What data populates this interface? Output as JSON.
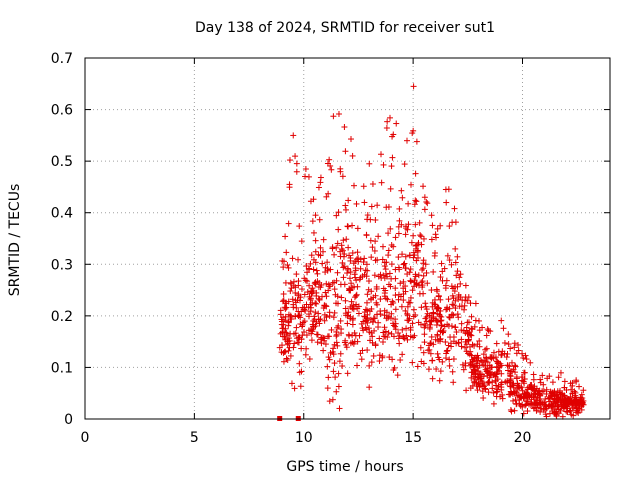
{
  "chart_data": {
    "type": "scatter",
    "title": "Day 138 of 2024, SRMTID for receiver sut1",
    "xlabel": "GPS time / hours",
    "ylabel": "SRMTID / TECUs",
    "xlim": [
      0,
      24
    ],
    "ylim": [
      0,
      0.7
    ],
    "x_ticks": [
      0,
      5,
      10,
      15,
      20
    ],
    "x_tick_labels": [
      "0",
      "5",
      "10",
      "15",
      "20"
    ],
    "y_ticks": [
      0,
      0.1,
      0.2,
      0.3,
      0.4,
      0.5,
      0.6,
      0.7
    ],
    "y_tick_labels": [
      "0",
      "0.1",
      "0.2",
      "0.3",
      "0.4",
      "0.5",
      "0.6",
      "0.7"
    ],
    "grid": true,
    "marker": "plus",
    "color": "#e00000",
    "zero_markers": [
      {
        "x": 8.9,
        "y": 0.0
      },
      {
        "x": 9.75,
        "y": 0.0
      }
    ],
    "envelope": [
      {
        "x": 8.9,
        "low": 0.12,
        "mid": 0.19,
        "high": 0.3
      },
      {
        "x": 9.5,
        "low": 0.14,
        "mid": 0.25,
        "high": 0.56
      },
      {
        "x": 10.0,
        "low": 0.13,
        "mid": 0.22,
        "high": 0.52
      },
      {
        "x": 10.5,
        "low": 0.16,
        "mid": 0.28,
        "high": 0.42
      },
      {
        "x": 11.0,
        "low": 0.1,
        "mid": 0.27,
        "high": 0.55
      },
      {
        "x": 11.5,
        "low": 0.08,
        "mid": 0.25,
        "high": 0.63
      },
      {
        "x": 12.0,
        "low": 0.11,
        "mid": 0.3,
        "high": 0.57
      },
      {
        "x": 12.5,
        "low": 0.13,
        "mid": 0.29,
        "high": 0.52
      },
      {
        "x": 13.0,
        "low": 0.1,
        "mid": 0.25,
        "high": 0.51
      },
      {
        "x": 13.5,
        "low": 0.11,
        "mid": 0.28,
        "high": 0.52
      },
      {
        "x": 14.0,
        "low": 0.12,
        "mid": 0.29,
        "high": 0.64
      },
      {
        "x": 14.5,
        "low": 0.13,
        "mid": 0.32,
        "high": 0.6
      },
      {
        "x": 15.0,
        "low": 0.16,
        "mid": 0.3,
        "high": 0.66
      },
      {
        "x": 15.5,
        "low": 0.12,
        "mid": 0.25,
        "high": 0.46
      },
      {
        "x": 16.0,
        "low": 0.09,
        "mid": 0.2,
        "high": 0.38
      },
      {
        "x": 16.5,
        "low": 0.09,
        "mid": 0.24,
        "high": 0.45
      },
      {
        "x": 17.0,
        "low": 0.1,
        "mid": 0.28,
        "high": 0.51
      },
      {
        "x": 17.5,
        "low": 0.08,
        "mid": 0.17,
        "high": 0.3
      },
      {
        "x": 18.0,
        "low": 0.05,
        "mid": 0.11,
        "high": 0.2
      },
      {
        "x": 18.5,
        "low": 0.05,
        "mid": 0.1,
        "high": 0.17
      },
      {
        "x": 19.0,
        "low": 0.04,
        "mid": 0.1,
        "high": 0.2
      },
      {
        "x": 19.5,
        "low": 0.03,
        "mid": 0.09,
        "high": 0.17
      },
      {
        "x": 20.0,
        "low": 0.02,
        "mid": 0.06,
        "high": 0.13
      },
      {
        "x": 20.5,
        "low": 0.02,
        "mid": 0.06,
        "high": 0.11
      },
      {
        "x": 21.0,
        "low": 0.01,
        "mid": 0.04,
        "high": 0.08
      },
      {
        "x": 21.5,
        "low": 0.01,
        "mid": 0.04,
        "high": 0.1
      },
      {
        "x": 22.0,
        "low": 0.01,
        "mid": 0.04,
        "high": 0.08
      },
      {
        "x": 22.5,
        "low": 0.01,
        "mid": 0.035,
        "high": 0.08
      },
      {
        "x": 22.8,
        "low": 0.02,
        "mid": 0.035,
        "high": 0.06
      }
    ],
    "sample_points_per_hour": 110
  }
}
